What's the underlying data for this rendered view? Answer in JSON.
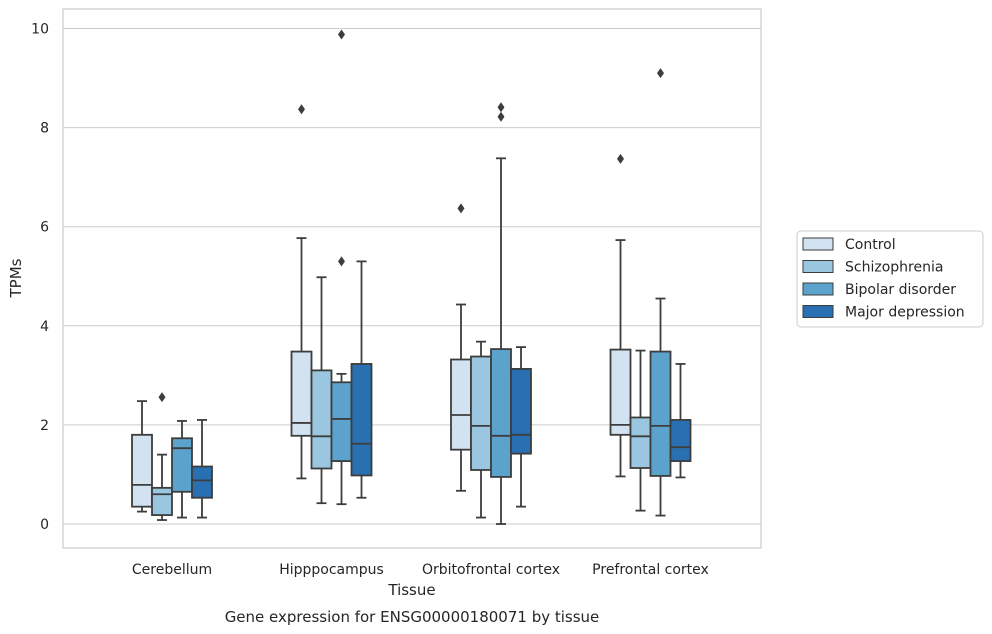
{
  "chart_data": {
    "type": "box",
    "xlabel": "Tissue",
    "ylabel": "TPMs",
    "caption": "Gene expression for ENSG00000180071 by tissue",
    "ylim": [
      -0.45,
      10.4
    ],
    "yticks": [
      0,
      2,
      4,
      6,
      8,
      10
    ],
    "grid": "horizontal",
    "legend_position": "right",
    "categories": [
      "Cerebellum",
      "Hipppocampus",
      "Orbitofrontal cortex",
      "Prefrontal cortex"
    ],
    "series": [
      {
        "name": "Control",
        "color": "#d2e2f1",
        "boxes": [
          {
            "whislo": 0.25,
            "q1": 0.35,
            "med": 0.79,
            "q3": 1.8,
            "whishi": 2.48,
            "fliers": []
          },
          {
            "whislo": 0.92,
            "q1": 1.78,
            "med": 2.04,
            "q3": 3.48,
            "whishi": 5.77,
            "fliers": [
              8.37
            ]
          },
          {
            "whislo": 0.67,
            "q1": 1.5,
            "med": 2.2,
            "q3": 3.32,
            "whishi": 4.43,
            "fliers": [
              6.37
            ]
          },
          {
            "whislo": 0.96,
            "q1": 1.8,
            "med": 2.0,
            "q3": 3.52,
            "whishi": 5.73,
            "fliers": [
              7.37
            ]
          }
        ]
      },
      {
        "name": "Schizophrenia",
        "color": "#9ac7df",
        "boxes": [
          {
            "whislo": 0.08,
            "q1": 0.18,
            "med": 0.6,
            "q3": 0.73,
            "whishi": 1.4,
            "fliers": [
              2.56
            ]
          },
          {
            "whislo": 0.42,
            "q1": 1.12,
            "med": 1.77,
            "q3": 3.1,
            "whishi": 4.98,
            "fliers": []
          },
          {
            "whislo": 0.13,
            "q1": 1.09,
            "med": 1.98,
            "q3": 3.38,
            "whishi": 3.68,
            "fliers": []
          },
          {
            "whislo": 0.27,
            "q1": 1.13,
            "med": 1.77,
            "q3": 2.15,
            "whishi": 3.5,
            "fliers": []
          }
        ]
      },
      {
        "name": "Bipolar disorder",
        "color": "#5ba3cd",
        "boxes": [
          {
            "whislo": 0.13,
            "q1": 0.65,
            "med": 1.53,
            "q3": 1.73,
            "whishi": 2.08,
            "fliers": []
          },
          {
            "whislo": 0.4,
            "q1": 1.27,
            "med": 2.12,
            "q3": 2.86,
            "whishi": 3.03,
            "fliers": [
              5.3,
              9.88
            ]
          },
          {
            "whislo": 0.0,
            "q1": 0.95,
            "med": 1.78,
            "q3": 3.53,
            "whishi": 7.38,
            "fliers": [
              8.22,
              8.41
            ]
          },
          {
            "whislo": 0.17,
            "q1": 0.97,
            "med": 1.98,
            "q3": 3.48,
            "whishi": 4.55,
            "fliers": [
              9.1
            ]
          }
        ]
      },
      {
        "name": "Major depression",
        "color": "#2970b2",
        "boxes": [
          {
            "whislo": 0.13,
            "q1": 0.53,
            "med": 0.88,
            "q3": 1.16,
            "whishi": 2.1,
            "fliers": []
          },
          {
            "whislo": 0.53,
            "q1": 0.98,
            "med": 1.62,
            "q3": 3.23,
            "whishi": 5.3,
            "fliers": []
          },
          {
            "whislo": 0.35,
            "q1": 1.42,
            "med": 1.8,
            "q3": 3.13,
            "whishi": 3.57,
            "fliers": []
          },
          {
            "whislo": 0.94,
            "q1": 1.27,
            "med": 1.55,
            "q3": 2.1,
            "whishi": 3.23,
            "fliers": []
          }
        ]
      }
    ]
  }
}
